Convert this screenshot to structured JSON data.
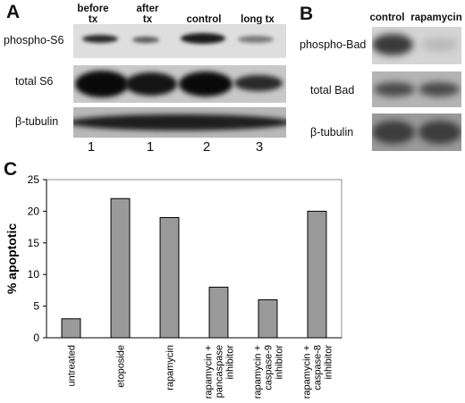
{
  "panel_a": {
    "letter": "A",
    "lanes": [
      {
        "header": "before\ntx",
        "number": "1"
      },
      {
        "header": "after\ntx",
        "number": "1"
      },
      {
        "header": "control",
        "number": "2"
      },
      {
        "header": "long tx",
        "number": "3"
      }
    ],
    "rows": [
      "phospho-S6",
      "total S6",
      "β-tubulin"
    ]
  },
  "panel_b": {
    "letter": "B",
    "lanes": [
      "control",
      "rapamycin"
    ],
    "rows": [
      "phospho-Bad",
      "total Bad",
      "β-tubulin"
    ]
  },
  "panel_c": {
    "letter": "C",
    "chart_data": {
      "type": "bar",
      "categories": [
        "untreated",
        "etoposide",
        "rapamycin",
        "rapamycin + pancaspase inhibitor",
        "rapamycin + caspase-9 inhibitor",
        "rapamycin + caspase-8 inhibitor"
      ],
      "category_lines": [
        [
          "untreated"
        ],
        [
          "etoposide"
        ],
        [
          "rapamycin"
        ],
        [
          "rapamycin +",
          "pancaspase",
          "inhibitor"
        ],
        [
          "rapamycin +",
          "caspase-9",
          "inhibitor"
        ],
        [
          "rapamycin +",
          "caspase-8",
          "inhibitor"
        ]
      ],
      "values": [
        3,
        22,
        19,
        8,
        6,
        20
      ],
      "ylabel": "% apoptotic",
      "ylim": [
        0,
        25
      ],
      "yticks": [
        0,
        5,
        10,
        15,
        20,
        25
      ],
      "grid": false,
      "bar_color": "#9a9a9a",
      "plot_bg": "#ffffff",
      "frame_color": "#8c8c8c"
    }
  }
}
